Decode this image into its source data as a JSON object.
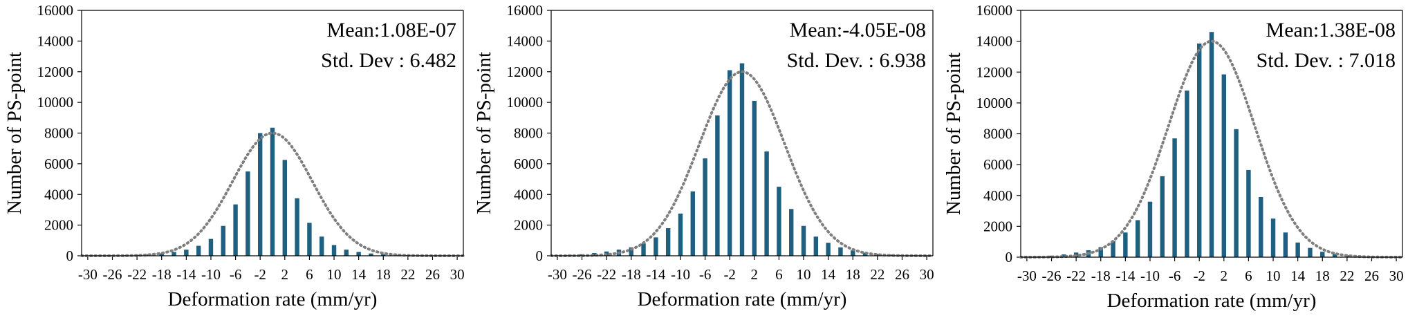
{
  "colors": {
    "bar": "#1f5f7f",
    "fit": "#7f7f7f",
    "axis": "#000000"
  },
  "chart_data": [
    {
      "type": "bar",
      "xlabel": "Deformation rate (mm/yr)",
      "ylabel": "Number of PS-point",
      "ylim": [
        0,
        16000
      ],
      "yticks": [
        "0",
        "2000",
        "4000",
        "6000",
        "8000",
        "10000",
        "12000",
        "14000",
        "16000"
      ],
      "xticks": [
        "-30",
        "-26",
        "-22",
        "-18",
        "-14",
        "-10",
        "-6",
        "-2",
        "2",
        "6",
        "10",
        "14",
        "18",
        "22",
        "26",
        "30"
      ],
      "mean_label": "Mean:1.08E-07",
      "std_label": "Std. Dev : 6.482",
      "mean": 1.08e-07,
      "std": 6.482,
      "fit_peak": 8000,
      "categories": [
        -30,
        -28,
        -26,
        -24,
        -22,
        -20,
        -18,
        -16,
        -14,
        -12,
        -10,
        -8,
        -6,
        -4,
        -2,
        0,
        2,
        4,
        6,
        8,
        10,
        12,
        14,
        16,
        18,
        20,
        22,
        24,
        26,
        28,
        30
      ],
      "values": [
        10,
        20,
        30,
        40,
        60,
        100,
        150,
        250,
        400,
        650,
        1100,
        1950,
        3350,
        5500,
        8000,
        8350,
        6250,
        3750,
        2150,
        1250,
        700,
        400,
        250,
        150,
        100,
        60,
        40,
        30,
        20,
        10,
        5
      ]
    },
    {
      "type": "bar",
      "xlabel": "Deformation rate (mm/yr)",
      "ylabel": "Number of PS-point",
      "ylim": [
        0,
        16000
      ],
      "yticks": [
        "0",
        "2000",
        "4000",
        "6000",
        "8000",
        "10000",
        "12000",
        "14000",
        "16000"
      ],
      "xticks": [
        "-30",
        "-26",
        "-22",
        "-18",
        "-14",
        "-10",
        "-6",
        "-2",
        "2",
        "6",
        "10",
        "14",
        "18",
        "22",
        "26",
        "30"
      ],
      "mean_label": "Mean:-4.05E-08",
      "std_label": "Std. Dev. : 6.938",
      "mean": -4.05e-08,
      "std": 6.938,
      "fit_peak": 12000,
      "categories": [
        -30,
        -28,
        -26,
        -24,
        -22,
        -20,
        -18,
        -16,
        -14,
        -12,
        -10,
        -8,
        -6,
        -4,
        -2,
        0,
        2,
        4,
        6,
        8,
        10,
        12,
        14,
        16,
        18,
        20,
        22,
        24,
        26,
        28,
        30
      ],
      "values": [
        30,
        60,
        100,
        180,
        280,
        400,
        550,
        800,
        1200,
        1800,
        2750,
        4200,
        6350,
        9150,
        12100,
        12550,
        10100,
        6800,
        4500,
        3050,
        1950,
        1250,
        850,
        550,
        350,
        200,
        120,
        80,
        50,
        30,
        15
      ]
    },
    {
      "type": "bar",
      "xlabel": "Deformation rate (mm/yr)",
      "ylabel": "Number of PS-point",
      "ylim": [
        0,
        16000
      ],
      "yticks": [
        "0",
        "2000",
        "4000",
        "6000",
        "8000",
        "10000",
        "12000",
        "14000",
        "16000"
      ],
      "xticks": [
        "-30",
        "-26",
        "-22",
        "-18",
        "-14",
        "-10",
        "-6",
        "-2",
        "2",
        "6",
        "10",
        "14",
        "18",
        "22",
        "26",
        "30"
      ],
      "mean_label": "Mean:1.38E-08",
      "std_label": "Std. Dev. : 7.018",
      "mean": 1.38e-08,
      "std": 7.018,
      "fit_peak": 14000,
      "categories": [
        -30,
        -28,
        -26,
        -24,
        -22,
        -20,
        -18,
        -16,
        -14,
        -12,
        -10,
        -8,
        -6,
        -4,
        -2,
        0,
        2,
        4,
        6,
        8,
        10,
        12,
        14,
        16,
        18,
        20,
        22,
        24,
        26,
        28,
        30
      ],
      "values": [
        30,
        60,
        100,
        180,
        300,
        450,
        650,
        1050,
        1600,
        2400,
        3600,
        5250,
        7700,
        10800,
        13850,
        14600,
        11850,
        8300,
        5650,
        3900,
        2500,
        1600,
        950,
        600,
        350,
        200,
        120,
        80,
        50,
        30,
        15
      ]
    }
  ]
}
